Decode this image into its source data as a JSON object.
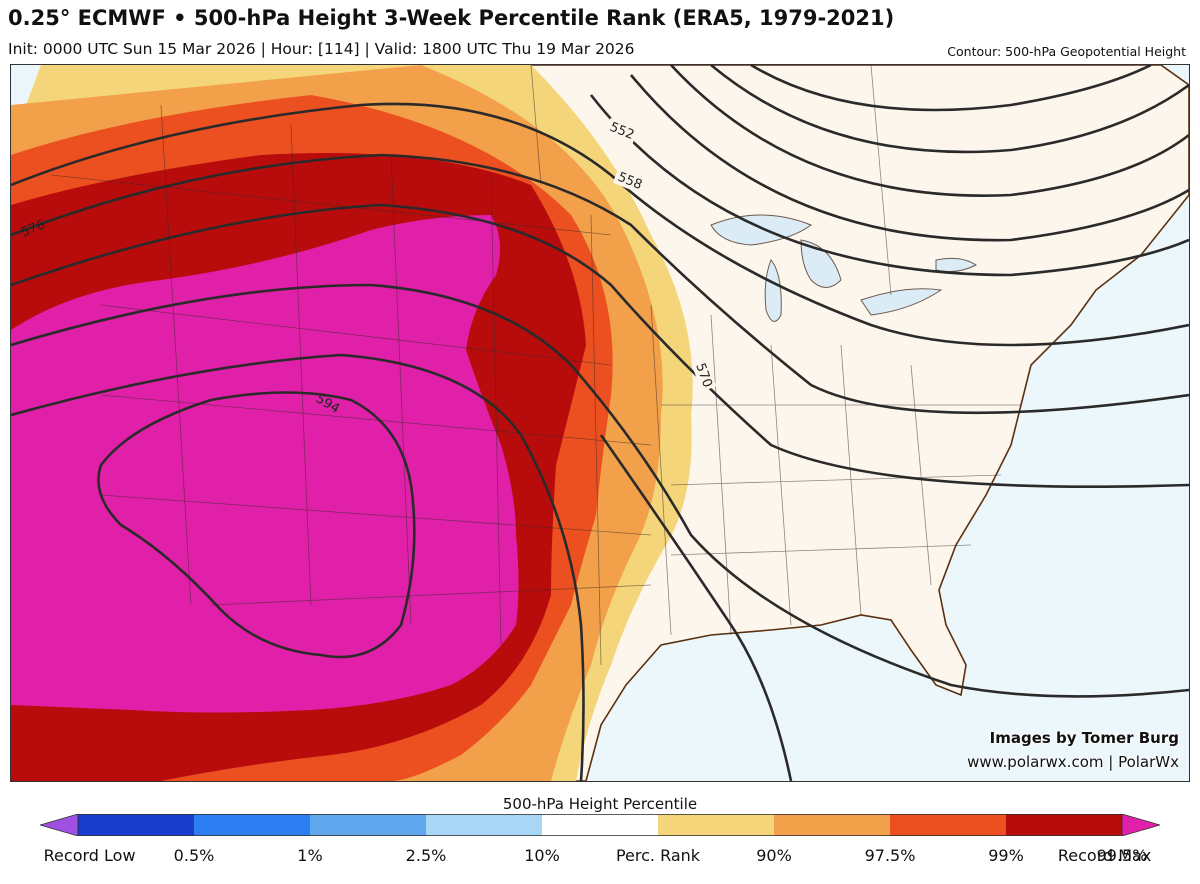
{
  "header": {
    "title": "0.25° ECMWF • 500-hPa Height 3-Week Percentile Rank (ERA5, 1979-2021)",
    "subtitle": "Init: 0000 UTC Sun 15 Mar 2026 | Hour: [114] | Valid: 1800 UTC Thu 19 Mar 2026",
    "contour_note": "Contour: 500-hPa Geopotential Height"
  },
  "map": {
    "contour_labels": [
      "552",
      "558",
      "570",
      "576",
      "594"
    ],
    "colors": {
      "ocean": "#ecf7fc",
      "land": "#fdf6ec",
      "coast": "#5a3010",
      "contour": "#2a2a2a"
    }
  },
  "credits": {
    "line1": "Images by Tomer Burg",
    "line2": "www.polarwx.com | PolarWx"
  },
  "colorbar": {
    "title": "500-hPa Height Percentile",
    "colors": [
      "#a050e0",
      "#1a3ccc",
      "#2d7ef2",
      "#5fa8ee",
      "#a8d6f5",
      "#ffffff",
      "#f5d57a",
      "#f2a04a",
      "#ec5020",
      "#b80c0c",
      "#e020a8"
    ],
    "labels": [
      "Record Low",
      "0.5%",
      "1%",
      "2.5%",
      "10%",
      "Perc. Rank",
      "90%",
      "97.5%",
      "99%",
      "99.5%",
      "Record Max"
    ]
  }
}
